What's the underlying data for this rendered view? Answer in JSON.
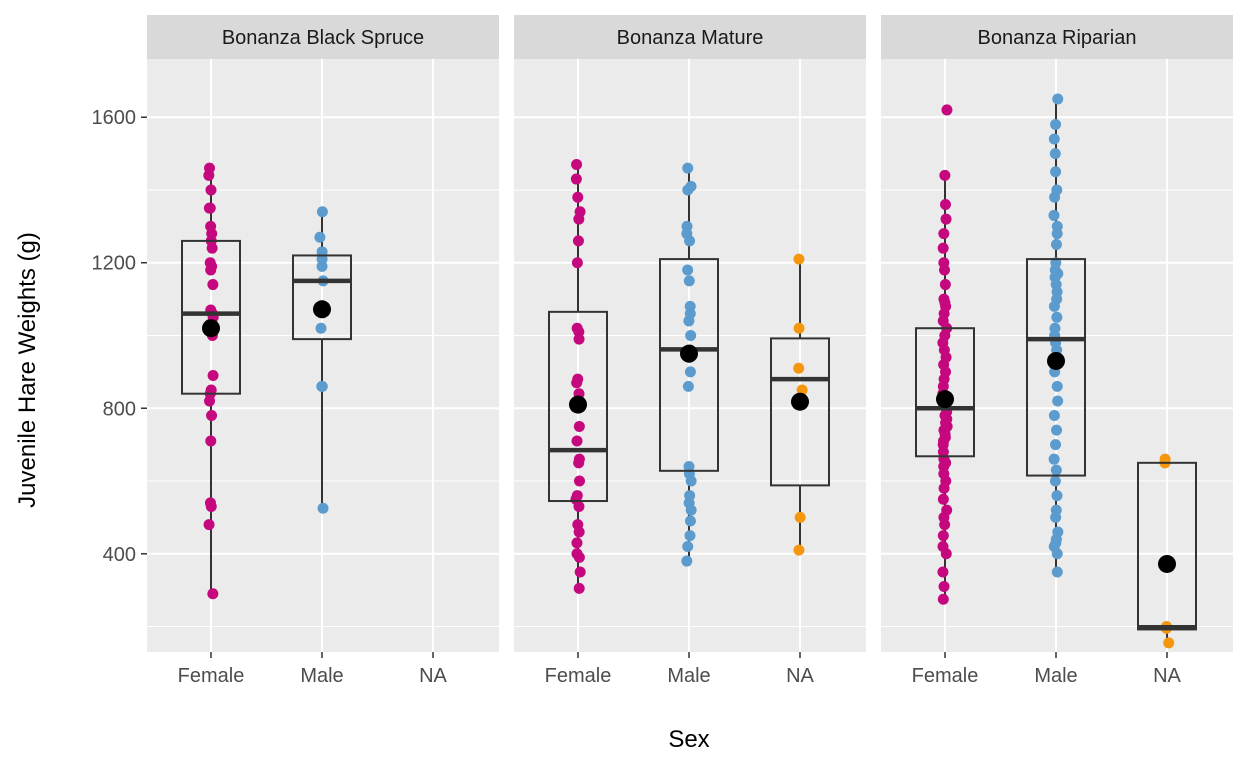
{
  "chart_data": {
    "type": "box",
    "xlabel": "Sex",
    "ylabel": "Juvenile Hare Weights (g)",
    "ylim": [
      130,
      1760
    ],
    "yticks": [
      400,
      800,
      1200,
      1600
    ],
    "grid": true,
    "categories": [
      "Female",
      "Male",
      "NA"
    ],
    "colors": {
      "Female": "#C5087E",
      "Male": "#5B9BCD",
      "NA": "#F5960F",
      "mean": "#000000"
    },
    "facets": [
      {
        "name": "Bonanza Black Spruce",
        "groups": [
          {
            "sex": "Female",
            "box": {
              "min": 290,
              "q1": 840,
              "median": 1060,
              "q3": 1260,
              "max": 1460
            },
            "mean": 1020,
            "points": [
              290,
              480,
              530,
              540,
              710,
              780,
              820,
              840,
              850,
              890,
              1000,
              1030,
              1050,
              1060,
              1070,
              1140,
              1180,
              1190,
              1200,
              1240,
              1260,
              1280,
              1300,
              1350,
              1350,
              1400,
              1440,
              1460
            ]
          },
          {
            "sex": "Male",
            "box": {
              "min": 525,
              "q1": 990,
              "median": 1150,
              "q3": 1220,
              "max": 1340
            },
            "mean": 1072,
            "points": [
              525,
              860,
              860,
              1020,
              1070,
              1150,
              1190,
              1210,
              1230,
              1270,
              1340
            ]
          },
          {
            "sex": "NA",
            "box": null,
            "mean": null,
            "points": []
          }
        ]
      },
      {
        "name": "Bonanza Mature",
        "groups": [
          {
            "sex": "Female",
            "box": {
              "min": 305,
              "q1": 545,
              "median": 685,
              "q3": 1065,
              "max": 1470
            },
            "mean": 810,
            "points": [
              305,
              350,
              390,
              400,
              430,
              460,
              480,
              530,
              550,
              560,
              600,
              650,
              660,
              710,
              750,
              810,
              840,
              870,
              880,
              990,
              1010,
              1020,
              1200,
              1260,
              1320,
              1340,
              1380,
              1430,
              1470
            ]
          },
          {
            "sex": "Male",
            "box": {
              "min": 380,
              "q1": 628,
              "median": 962,
              "q3": 1210,
              "max": 1460
            },
            "mean": 950,
            "points": [
              380,
              420,
              450,
              490,
              520,
              540,
              560,
              600,
              620,
              640,
              860,
              900,
              940,
              960,
              1000,
              1040,
              1060,
              1080,
              1150,
              1180,
              1260,
              1280,
              1300,
              1400,
              1410,
              1460
            ]
          },
          {
            "sex": "NA",
            "box": {
              "min": 410,
              "q1": 588,
              "median": 880,
              "q3": 992,
              "max": 1210
            },
            "mean": 818,
            "points": [
              410,
              500,
              850,
              910,
              1020,
              1210
            ]
          }
        ]
      },
      {
        "name": "Bonanza Riparian",
        "groups": [
          {
            "sex": "Female",
            "box": {
              "min": 275,
              "q1": 668,
              "median": 800,
              "q3": 1020,
              "max": 1440
            },
            "mean": 825,
            "points": [
              275,
              310,
              350,
              400,
              420,
              450,
              480,
              500,
              520,
              550,
              580,
              600,
              620,
              640,
              650,
              660,
              680,
              700,
              710,
              720,
              730,
              740,
              750,
              760,
              770,
              780,
              790,
              800,
              810,
              820,
              830,
              840,
              860,
              880,
              900,
              920,
              940,
              960,
              980,
              1000,
              1020,
              1040,
              1060,
              1080,
              1090,
              1100,
              1140,
              1180,
              1200,
              1240,
              1280,
              1320,
              1360,
              1440,
              1620
            ]
          },
          {
            "sex": "Male",
            "box": {
              "min": 350,
              "q1": 615,
              "median": 990,
              "q3": 1210,
              "max": 1650
            },
            "mean": 930,
            "points": [
              350,
              400,
              420,
              430,
              440,
              460,
              500,
              520,
              560,
              600,
              630,
              660,
              700,
              740,
              780,
              820,
              860,
              900,
              940,
              960,
              980,
              1000,
              1020,
              1050,
              1080,
              1100,
              1120,
              1140,
              1160,
              1170,
              1180,
              1200,
              1250,
              1280,
              1300,
              1330,
              1380,
              1400,
              1450,
              1500,
              1540,
              1580,
              1650
            ]
          },
          {
            "sex": "NA",
            "box": {
              "min": 155,
              "q1": 192,
              "median": 198,
              "q3": 650,
              "max": 660
            },
            "mean": 372,
            "points": [
              155,
              195,
              200,
              650,
              660
            ]
          }
        ]
      }
    ]
  }
}
